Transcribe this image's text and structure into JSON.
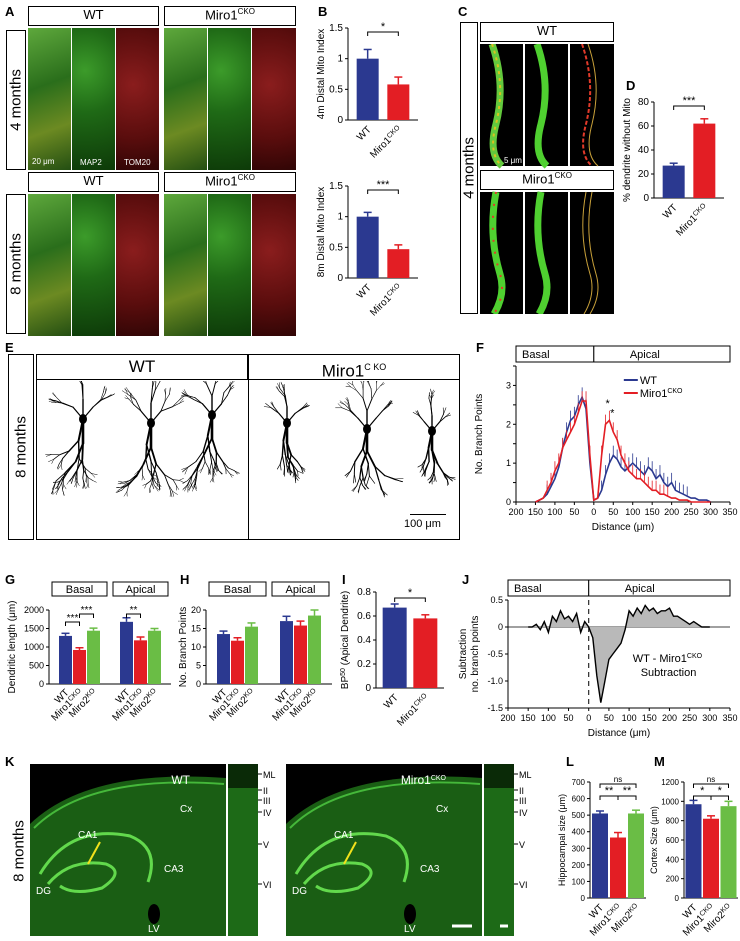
{
  "panels": {
    "A": {
      "label": "A",
      "wt": "WT",
      "cko": "Miro1",
      "cko_sup": "CKO",
      "row1": "4 months",
      "row2": "8 months",
      "scale": "20 μm",
      "ch_map2": "MAP2",
      "ch_tom20": "TOM20"
    },
    "B": {
      "label": "B"
    },
    "C": {
      "label": "C",
      "wt": "WT",
      "cko": "Miro1",
      "cko_sup": "CKO",
      "row": "4 months",
      "scale": "5 μm"
    },
    "D": {
      "label": "D"
    },
    "E": {
      "label": "E",
      "wt": "WT",
      "cko": "Miro1",
      "cko_sup": "C KO",
      "row": "8 months",
      "scale": "100 μm"
    },
    "F": {
      "label": "F"
    },
    "G": {
      "label": "G"
    },
    "H": {
      "label": "H"
    },
    "I": {
      "label": "I"
    },
    "J": {
      "label": "J"
    },
    "K": {
      "label": "K",
      "wt": "WT",
      "cko": "Miro1",
      "cko_sup": "CKO",
      "row": "8 months",
      "regions": [
        "CA1",
        "CA3",
        "DG",
        "LV",
        "Cx"
      ],
      "layers": [
        "ML",
        "II",
        "III",
        "IV",
        "V",
        "VI"
      ]
    },
    "L": {
      "label": "L"
    },
    "M": {
      "label": "M"
    }
  },
  "chart_data": [
    {
      "id": "B1",
      "type": "bar",
      "ylabel": "4m Distal Mito Index",
      "categories": [
        "WT",
        "Miro1CKO"
      ],
      "values": [
        1.0,
        0.58
      ],
      "errors": [
        0.15,
        0.12
      ],
      "ylim": [
        0,
        1.5
      ],
      "yticks": [
        0,
        0.5,
        1,
        1.5
      ],
      "sig": [
        "*"
      ]
    },
    {
      "id": "B2",
      "type": "bar",
      "ylabel": "8m Distal Mito Index",
      "categories": [
        "WT",
        "Miro1CKO"
      ],
      "values": [
        1.0,
        0.47
      ],
      "errors": [
        0.07,
        0.07
      ],
      "ylim": [
        0,
        1.5
      ],
      "yticks": [
        0,
        0.5,
        1,
        1.5
      ],
      "sig": [
        "***"
      ]
    },
    {
      "id": "D",
      "type": "bar",
      "ylabel": "% dendrite without Mito",
      "categories": [
        "WT",
        "Miro1CKO"
      ],
      "values": [
        27,
        62
      ],
      "errors": [
        2,
        4
      ],
      "ylim": [
        0,
        80
      ],
      "yticks": [
        0,
        20,
        40,
        60,
        80
      ],
      "sig": [
        "***"
      ]
    },
    {
      "id": "F",
      "type": "line",
      "ylabel": "No. Branch Points",
      "xlabel": "Distance (μm)",
      "regions": [
        "Basal",
        "Apical"
      ],
      "legend": [
        "WT",
        "Miro1"
      ],
      "legend_sup": "CKO",
      "xticks": [
        "200",
        "150",
        "100",
        "50",
        "0",
        "50",
        "100",
        "150",
        "200",
        "250",
        "300",
        "350"
      ],
      "yticks": [
        0,
        0.5,
        1,
        1.5,
        2,
        2.5,
        3,
        3.5
      ],
      "ylim": [
        0,
        3.5
      ],
      "x": [
        -150,
        -140,
        -130,
        -120,
        -110,
        -100,
        -90,
        -80,
        -70,
        -60,
        -50,
        -40,
        -30,
        -20,
        -10,
        0,
        10,
        20,
        30,
        40,
        50,
        60,
        70,
        80,
        90,
        100,
        110,
        120,
        130,
        140,
        150,
        160,
        170,
        180,
        190,
        200,
        210,
        220,
        230,
        240,
        250,
        260,
        270,
        280,
        290,
        300
      ],
      "series": [
        {
          "name": "WT",
          "color": "#2b3990",
          "values": [
            0,
            0.05,
            0.1,
            0.2,
            0.4,
            0.6,
            0.9,
            1.4,
            1.8,
            2.1,
            2.2,
            2.5,
            2.7,
            2.4,
            1.0,
            0.05,
            0.1,
            0.3,
            0.7,
            1.0,
            1.2,
            1.1,
            0.9,
            0.8,
            0.9,
            1.0,
            0.9,
            0.8,
            0.7,
            0.9,
            0.8,
            0.6,
            0.7,
            0.5,
            0.4,
            0.5,
            0.3,
            0.25,
            0.2,
            0.15,
            0.1,
            0.1,
            0.05,
            0.05,
            0.05,
            0
          ]
        },
        {
          "name": "Miro1CKO",
          "color": "#e31e24",
          "values": [
            0,
            0.05,
            0.1,
            0.3,
            0.5,
            0.8,
            1.0,
            1.4,
            1.6,
            1.8,
            2.0,
            2.3,
            2.6,
            2.6,
            1.2,
            0.05,
            0.1,
            1.2,
            2.0,
            2.1,
            1.8,
            1.6,
            1.2,
            1.0,
            0.8,
            0.7,
            0.6,
            0.6,
            0.5,
            0.4,
            0.3,
            0.3,
            0.2,
            0.2,
            0.15,
            0.1,
            0.1,
            0.05,
            0.05,
            0.05,
            0,
            0,
            0,
            0,
            0,
            0
          ]
        }
      ],
      "sig": [
        "*",
        "*"
      ]
    },
    {
      "id": "G",
      "type": "bar",
      "ylabel": "Dendritic length (μm)",
      "groups": [
        "Basal",
        "Apical"
      ],
      "categories": [
        "WT",
        "Miro1CKO",
        "Miro2KO"
      ],
      "series": [
        {
          "name": "Basal",
          "values": [
            1300,
            920,
            1440
          ],
          "errors": [
            70,
            60,
            70
          ]
        },
        {
          "name": "Apical",
          "values": [
            1680,
            1180,
            1440
          ],
          "errors": [
            110,
            90,
            60
          ]
        }
      ],
      "ylim": [
        0,
        2000
      ],
      "yticks": [
        0,
        500,
        1000,
        1500,
        2000
      ],
      "colors": [
        "#2b3990",
        "#e31e24",
        "#6abd45"
      ],
      "sig": [
        "***",
        "***",
        "**"
      ]
    },
    {
      "id": "H",
      "type": "bar",
      "ylabel": "No. Branch Points",
      "groups": [
        "Basal",
        "Apical"
      ],
      "categories": [
        "WT",
        "Miro1CKO",
        "Miro2KO"
      ],
      "series": [
        {
          "name": "Basal",
          "values": [
            13.5,
            11.7,
            15.5
          ],
          "errors": [
            0.8,
            0.8,
            1.0
          ]
        },
        {
          "name": "Apical",
          "values": [
            17.0,
            15.8,
            18.5
          ],
          "errors": [
            1.3,
            1.2,
            1.5
          ]
        }
      ],
      "ylim": [
        0,
        20
      ],
      "yticks": [
        0,
        5,
        10,
        15,
        20
      ],
      "colors": [
        "#2b3990",
        "#e31e24",
        "#6abd45"
      ]
    },
    {
      "id": "I",
      "type": "bar",
      "ylabel": "BP",
      "ylabel_sup": "50",
      "ylabel_rest": " (Apical Dendrite)",
      "categories": [
        "WT",
        "Miro1CKO"
      ],
      "values": [
        0.67,
        0.58
      ],
      "errors": [
        0.03,
        0.03
      ],
      "ylim": [
        0,
        0.8
      ],
      "yticks": [
        0,
        0.2,
        0.4,
        0.6,
        0.8
      ],
      "sig": [
        "*"
      ]
    },
    {
      "id": "J",
      "type": "area",
      "ylabel": "Subtraction",
      "ylabel2": "no. branch points",
      "xlabel": "Distance (μm)",
      "regions": [
        "Basal",
        "Apical"
      ],
      "annotation": "WT - Miro1",
      "annotation_sup": "CKO",
      "annotation2": "Subtraction",
      "xticks": [
        "200",
        "150",
        "100",
        "50",
        "0",
        "50",
        "100",
        "150",
        "200",
        "250",
        "300",
        "350"
      ],
      "yticks": [
        0.5,
        0,
        -0.5,
        -1.0,
        -1.5
      ],
      "ylim": [
        -1.5,
        0.5
      ],
      "x": [
        -150,
        -140,
        -130,
        -120,
        -110,
        -100,
        -90,
        -80,
        -70,
        -60,
        -50,
        -40,
        -30,
        -20,
        -10,
        0,
        10,
        20,
        30,
        40,
        50,
        60,
        70,
        80,
        90,
        100,
        110,
        120,
        130,
        140,
        150,
        160,
        170,
        180,
        190,
        200,
        210,
        220,
        230,
        240,
        250,
        260,
        270,
        280,
        290,
        300
      ],
      "values": [
        0,
        0,
        0.05,
        -0.05,
        0.1,
        -0.1,
        0.2,
        0.1,
        0.3,
        0.15,
        0.2,
        0.1,
        0.25,
        -0.1,
        0.1,
        0,
        -0.2,
        -0.9,
        -1.4,
        -1.0,
        -0.6,
        -0.5,
        -0.4,
        -0.3,
        -0.05,
        0.3,
        0.2,
        0.35,
        0.25,
        0.4,
        0.3,
        0.35,
        0.25,
        0.3,
        0.3,
        0.35,
        0.2,
        0.2,
        0.15,
        0.1,
        0.05,
        0.1,
        0.05,
        0,
        0,
        0
      ]
    },
    {
      "id": "L",
      "type": "bar",
      "ylabel": "Hippocampal size (μm)",
      "categories": [
        "WT",
        "Miro1CKO",
        "Miro2KO"
      ],
      "values": [
        510,
        365,
        510
      ],
      "errors": [
        15,
        30,
        20
      ],
      "ylim": [
        0,
        700
      ],
      "yticks": [
        0,
        100,
        200,
        300,
        400,
        500,
        600,
        700
      ],
      "colors": [
        "#2b3990",
        "#e31e24",
        "#6abd45"
      ],
      "sig": [
        "**",
        "**",
        "ns"
      ]
    },
    {
      "id": "M",
      "type": "bar",
      "ylabel": "Cortex Size (μm)",
      "categories": [
        "WT",
        "Miro1CKO",
        "Miro2KO"
      ],
      "values": [
        970,
        820,
        950
      ],
      "errors": [
        40,
        30,
        50
      ],
      "ylim": [
        0,
        1200
      ],
      "yticks": [
        0,
        200,
        400,
        600,
        800,
        1000,
        1200
      ],
      "colors": [
        "#2b3990",
        "#e31e24",
        "#6abd45"
      ],
      "sig": [
        "*",
        "*",
        "ns"
      ]
    }
  ]
}
